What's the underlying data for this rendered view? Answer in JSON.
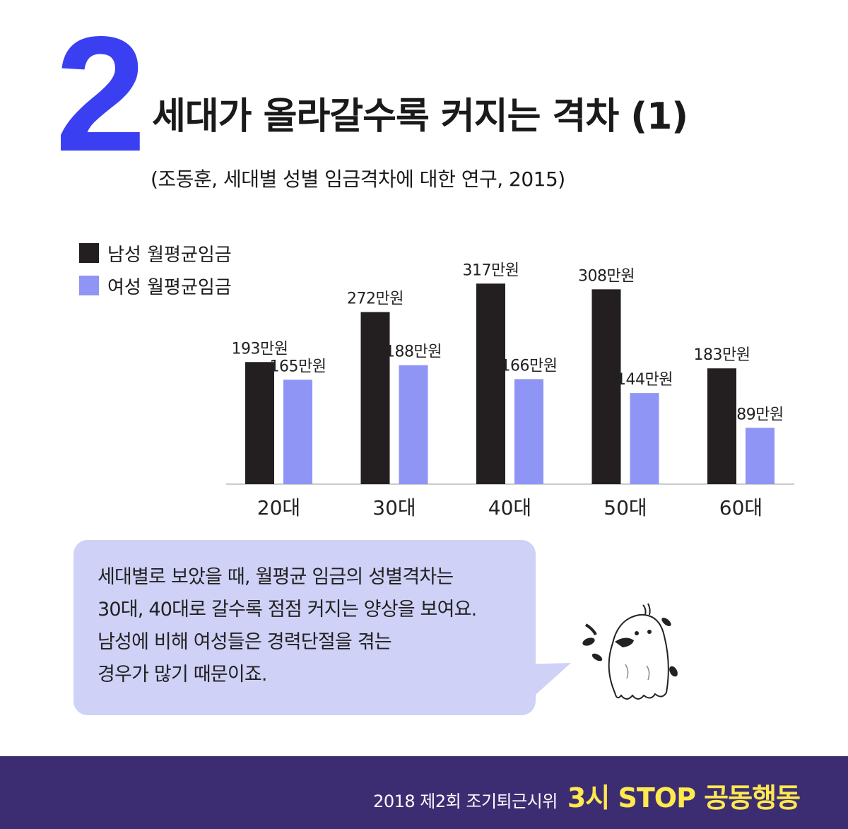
{
  "header": {
    "number": "2",
    "title": "세대가 올라갈수록 커지는 격차 (1)",
    "subtitle": "(조동훈, 세대별 성별 임금격차에 대한 연구, 2015)"
  },
  "colors": {
    "accent": "#3a3ff2",
    "male": "#231f20",
    "female": "#8f95f5",
    "bubble": "#cfd1f7",
    "footer_bg": "#3c2d73",
    "footer_highlight": "#ffe94d"
  },
  "chart_data": {
    "type": "bar",
    "categories": [
      "20대",
      "30대",
      "40대",
      "50대",
      "60대"
    ],
    "series": [
      {
        "name": "남성 월평균임금",
        "values": [
          193,
          272,
          317,
          308,
          183
        ],
        "labels": [
          "193만원",
          "272만원",
          "317만원",
          "308만원",
          "183만원"
        ]
      },
      {
        "name": "여성 월평균임금",
        "values": [
          165,
          188,
          166,
          144,
          89
        ],
        "labels": [
          "165만원",
          "188만원",
          "166만원",
          "144만원",
          "89만원"
        ]
      }
    ],
    "title": "",
    "xlabel": "",
    "ylabel": "",
    "ylim": [
      0,
      350
    ],
    "legend": "top-left",
    "grid": false
  },
  "bubble": {
    "lines": [
      "세대별로 보았을 때, 월평균 임금의 성별격차는",
      "30대, 40대로 갈수록 점점 커지는 양상을 보여요.",
      "남성에 비해 여성들은 경력단절을 겪는",
      "경우가 많기 때문이죠."
    ]
  },
  "footer": {
    "small": "2018 제2회 조기퇴근시위",
    "big": "3시 STOP 공동행동"
  }
}
